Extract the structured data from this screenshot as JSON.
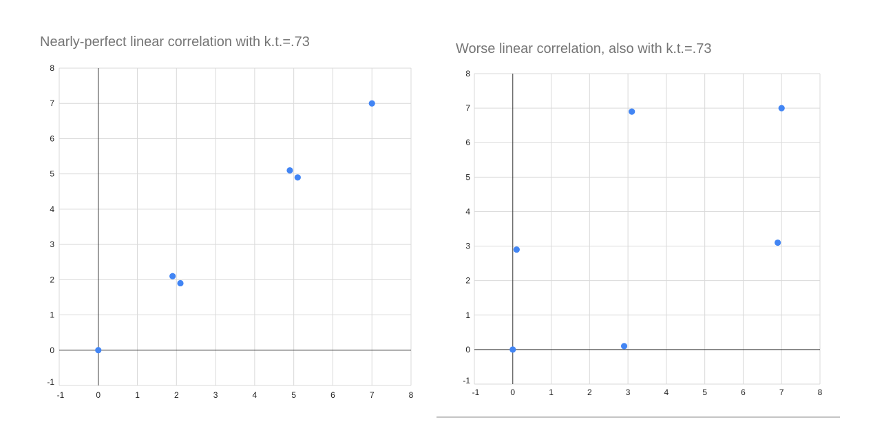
{
  "chart_data": [
    {
      "type": "scatter",
      "title": "Nearly-perfect linear correlation with k.t.=.73",
      "xlabel": "",
      "ylabel": "",
      "xlim": [
        -1,
        8
      ],
      "ylim": [
        -1,
        8
      ],
      "x_ticks": [
        "-1",
        "0",
        "1",
        "2",
        "3",
        "4",
        "5",
        "6",
        "7",
        "8"
      ],
      "y_ticks": [
        "-1",
        "0",
        "1",
        "2",
        "3",
        "4",
        "5",
        "6",
        "7",
        "8"
      ],
      "grid": true,
      "legend": "none",
      "marker_color": "#4285f4",
      "points": [
        {
          "x": 0,
          "y": 0
        },
        {
          "x": 1.9,
          "y": 2.1
        },
        {
          "x": 2.1,
          "y": 1.9
        },
        {
          "x": 4.9,
          "y": 5.1
        },
        {
          "x": 5.1,
          "y": 4.9
        },
        {
          "x": 7,
          "y": 7
        }
      ]
    },
    {
      "type": "scatter",
      "title": "Worse linear correlation, also with k.t.=.73",
      "xlabel": "",
      "ylabel": "",
      "xlim": [
        -1,
        8
      ],
      "ylim": [
        -1,
        8
      ],
      "x_ticks": [
        "-1",
        "0",
        "1",
        "2",
        "3",
        "4",
        "5",
        "6",
        "7",
        "8"
      ],
      "y_ticks": [
        "-1",
        "0",
        "1",
        "2",
        "3",
        "4",
        "5",
        "6",
        "7",
        "8"
      ],
      "grid": true,
      "legend": "none",
      "marker_color": "#4285f4",
      "points": [
        {
          "x": 0,
          "y": 0
        },
        {
          "x": 0.1,
          "y": 2.9
        },
        {
          "x": 2.9,
          "y": 0.1
        },
        {
          "x": 3.1,
          "y": 6.9
        },
        {
          "x": 6.9,
          "y": 3.1
        },
        {
          "x": 7,
          "y": 7
        }
      ]
    }
  ]
}
